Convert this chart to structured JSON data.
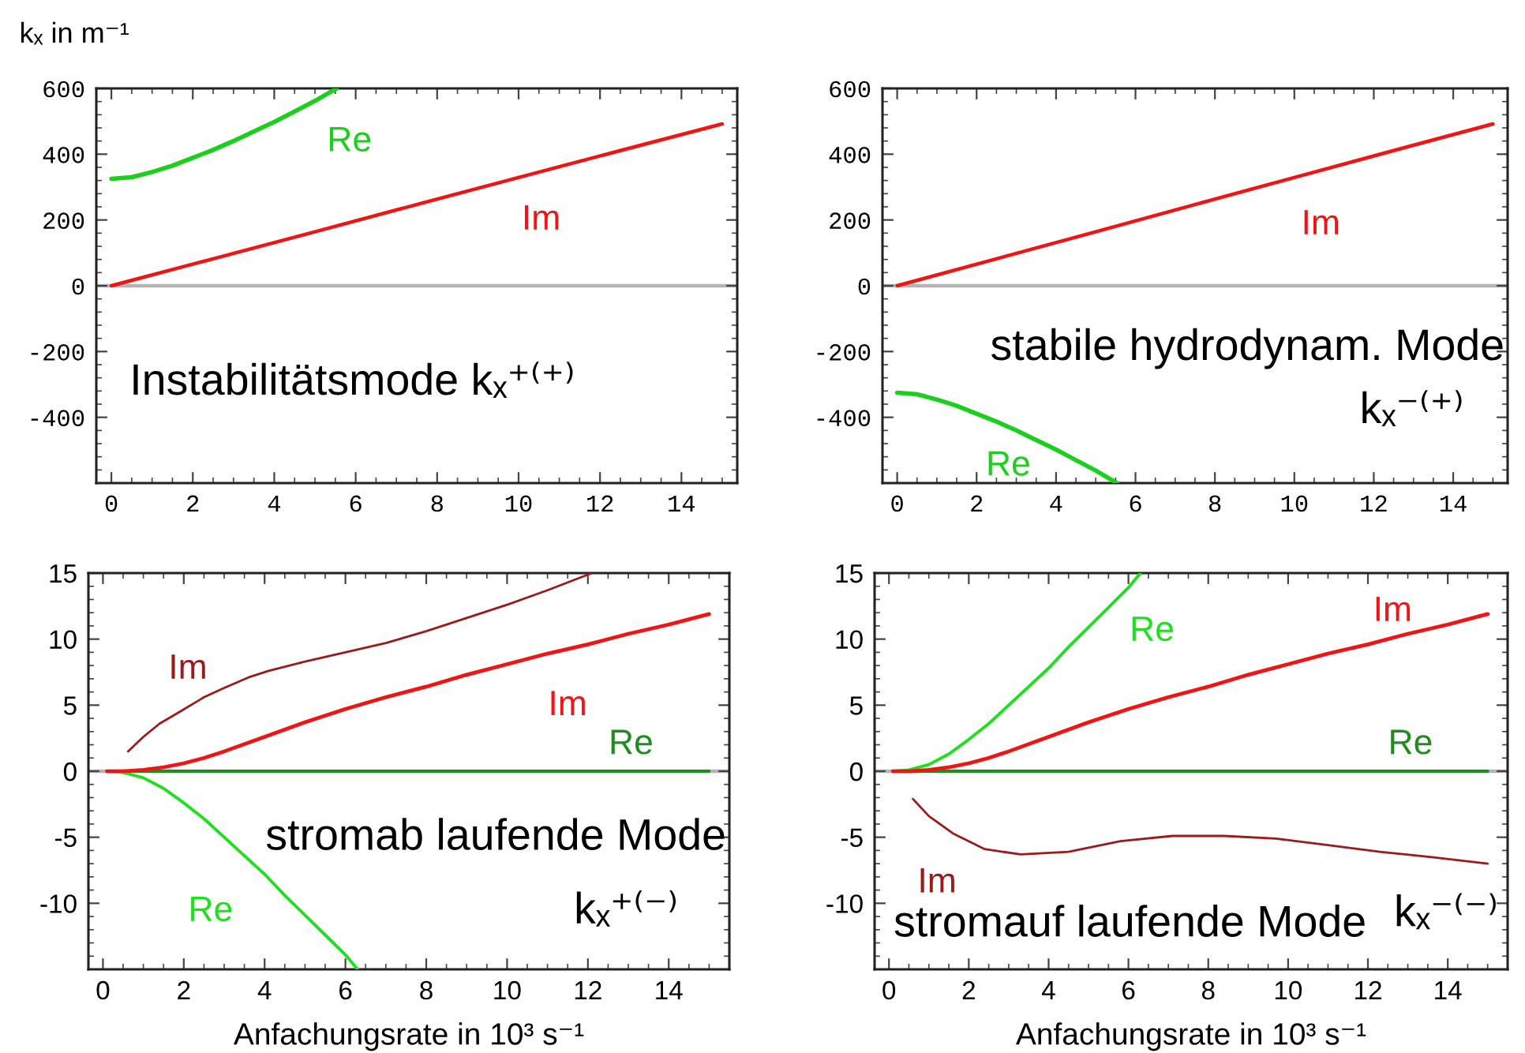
{
  "chart_data": [
    {
      "type": "line",
      "ylabel": "kₓ in m⁻¹",
      "xlim": [
        -0.37,
        15.37
      ],
      "ylim": [
        -600,
        600
      ],
      "xticks": [
        0,
        2,
        4,
        6,
        8,
        10,
        12,
        14
      ],
      "yticks": [
        -400,
        -200,
        0,
        200,
        400,
        600
      ],
      "series": [
        {
          "name": "Re",
          "color": "#1ccf1c",
          "x": [
            0,
            0.5,
            1,
            1.5,
            2,
            2.5,
            3,
            3.5,
            4,
            4.5,
            5,
            5.53
          ],
          "values": [
            325,
            330,
            346,
            365,
            389,
            413,
            440,
            469,
            498,
            530,
            562,
            600
          ]
        },
        {
          "name": "Im",
          "color": "#f01414",
          "x": [
            0,
            2.5,
            5,
            7.5,
            10,
            12.5,
            15
          ],
          "values": [
            0,
            82,
            164,
            247,
            329,
            411,
            492
          ]
        }
      ],
      "ref_lines": [
        {
          "axis": "y",
          "value": 0,
          "color": "#b4b4b4"
        }
      ],
      "annotations": [
        "Instabilitätsmode kₓ⁺⁽⁺⁾"
      ]
    },
    {
      "type": "line",
      "xlim": [
        -0.37,
        15.37
      ],
      "ylim": [
        -600,
        600
      ],
      "xticks": [
        0,
        2,
        4,
        6,
        8,
        10,
        12,
        14
      ],
      "yticks": [
        -400,
        -200,
        0,
        200,
        400,
        600
      ],
      "series": [
        {
          "name": "Re",
          "color": "#1ccf1c",
          "x": [
            0,
            0.5,
            1,
            1.5,
            2,
            2.5,
            3,
            3.5,
            4,
            4.5,
            5,
            5.53
          ],
          "values": [
            -325,
            -330,
            -346,
            -365,
            -389,
            -413,
            -440,
            -469,
            -498,
            -530,
            -562,
            -600
          ]
        },
        {
          "name": "Im",
          "color": "#f01414",
          "x": [
            0,
            2.5,
            5,
            7.5,
            10,
            12.5,
            15
          ],
          "values": [
            0,
            82,
            164,
            247,
            329,
            411,
            492
          ]
        }
      ],
      "ref_lines": [
        {
          "axis": "y",
          "value": 0,
          "color": "#b4b4b4"
        }
      ],
      "annotations": [
        "stabile hydrodynam. Mode",
        "kₓ⁻⁽⁺⁾"
      ]
    },
    {
      "type": "line",
      "xlabel": "Anfachungsrate in 10³ s⁻¹",
      "xlim": [
        -0.36,
        15.5
      ],
      "ylim": [
        -15,
        15
      ],
      "xticks": [
        0,
        2,
        4,
        6,
        8,
        10,
        12,
        14
      ],
      "yticks": [
        -10,
        -5,
        0,
        5,
        10,
        15
      ],
      "series": [
        {
          "name": "Re",
          "color": "#208c20",
          "x": [
            0.13,
            15
          ],
          "values": [
            0,
            0
          ]
        },
        {
          "name": "Re",
          "color": "#1ee01e",
          "x": [
            0.13,
            0.5,
            1,
            1.5,
            2,
            2.5,
            3,
            3.5,
            4,
            4.5,
            5,
            5.5,
            6,
            6.3
          ],
          "values": [
            0,
            -0.1,
            -0.5,
            -1.3,
            -2.4,
            -3.6,
            -5.0,
            -6.4,
            -7.8,
            -9.4,
            -10.9,
            -12.4,
            -13.9,
            -15.0
          ]
        },
        {
          "name": "Im",
          "color": "#f01414",
          "x": [
            0.1,
            0.5,
            1,
            1.5,
            2,
            2.5,
            3,
            4,
            5,
            6,
            7,
            8,
            9,
            10,
            11,
            12,
            13,
            14,
            15
          ],
          "values": [
            0,
            0,
            0.1,
            0.3,
            0.6,
            1.0,
            1.5,
            2.6,
            3.7,
            4.7,
            5.6,
            6.4,
            7.3,
            8.1,
            8.9,
            9.6,
            10.4,
            11.1,
            11.9
          ]
        },
        {
          "name": "Im",
          "color": "#9b1b1b",
          "x": [
            0.62,
            1.0,
            1.4,
            1.9,
            2.5,
            3.0,
            3.6,
            4.1,
            5.0,
            6.0,
            7.0,
            8.0,
            9.0,
            10.0,
            11.0,
            12.1
          ],
          "values": [
            1.5,
            2.6,
            3.6,
            4.5,
            5.6,
            6.3,
            7.1,
            7.6,
            8.3,
            9.0,
            9.7,
            10.6,
            11.6,
            12.6,
            13.7,
            15.0
          ]
        }
      ],
      "ref_lines": [
        {
          "axis": "y",
          "value": 0,
          "color": "#b4b4b4"
        }
      ],
      "annotations": [
        "stromab laufende Mode",
        "kₓ⁺⁽⁻⁾"
      ]
    },
    {
      "type": "line",
      "xlabel": "Anfachungsrate in 10³ s⁻¹",
      "xlim": [
        -0.36,
        15.5
      ],
      "ylim": [
        -15,
        15
      ],
      "xticks": [
        0,
        2,
        4,
        6,
        8,
        10,
        12,
        14
      ],
      "yticks": [
        -10,
        -5,
        0,
        5,
        10,
        15
      ],
      "series": [
        {
          "name": "Re",
          "color": "#208c20",
          "x": [
            0.13,
            15
          ],
          "values": [
            0,
            0
          ]
        },
        {
          "name": "Re",
          "color": "#1ee01e",
          "x": [
            0.13,
            0.5,
            1,
            1.5,
            2,
            2.5,
            3,
            3.5,
            4,
            4.5,
            5,
            5.5,
            6,
            6.3
          ],
          "values": [
            0,
            0.1,
            0.5,
            1.3,
            2.4,
            3.6,
            5.0,
            6.4,
            7.8,
            9.4,
            10.9,
            12.4,
            13.9,
            15.0
          ]
        },
        {
          "name": "Im",
          "color": "#f01414",
          "x": [
            0.1,
            0.5,
            1,
            1.5,
            2,
            2.5,
            3,
            4,
            5,
            6,
            7,
            8,
            9,
            10,
            11,
            12,
            13,
            14,
            15
          ],
          "values": [
            0,
            0,
            0.1,
            0.3,
            0.6,
            1.0,
            1.5,
            2.6,
            3.7,
            4.7,
            5.6,
            6.4,
            7.3,
            8.1,
            8.9,
            9.6,
            10.4,
            11.1,
            11.9
          ]
        },
        {
          "name": "Im",
          "color": "#9b1b1b",
          "x": [
            0.6,
            1.0,
            1.6,
            2.4,
            3.3,
            4.5,
            5.8,
            7.1,
            8.4,
            9.7,
            11.0,
            12.3,
            13.6,
            15.0
          ],
          "values": [
            -2.1,
            -3.4,
            -4.7,
            -5.9,
            -6.3,
            -6.1,
            -5.3,
            -4.9,
            -4.9,
            -5.1,
            -5.6,
            -6.1,
            -6.5,
            -7.0
          ]
        }
      ],
      "ref_lines": [
        {
          "axis": "y",
          "value": 0,
          "color": "#b4b4b4"
        }
      ],
      "annotations": [
        "stromauf laufende Mode",
        "kₓ⁻⁽⁻⁾"
      ]
    }
  ]
}
